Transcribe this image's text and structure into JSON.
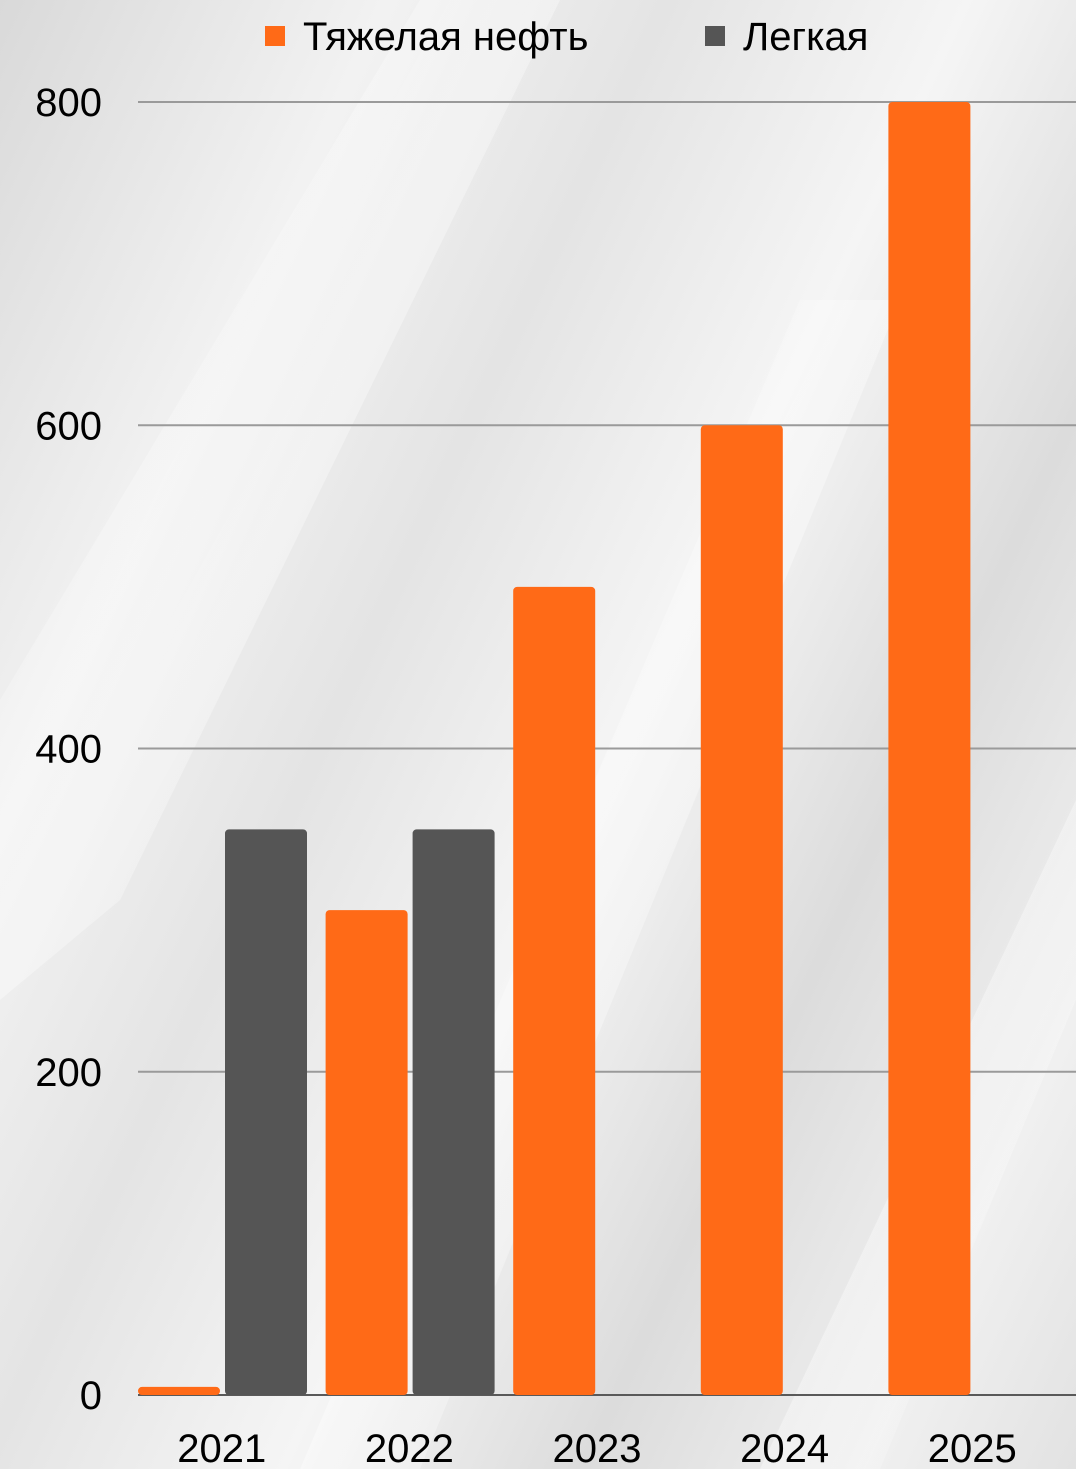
{
  "chart_data": {
    "type": "bar",
    "title": "",
    "xlabel": "",
    "ylabel": "",
    "categories": [
      "2021",
      "2022",
      "2023",
      "2024",
      "2025"
    ],
    "series": [
      {
        "name": "Тяжелая нефть",
        "color": "#ff6a17",
        "values": [
          5,
          300,
          500,
          600,
          800
        ]
      },
      {
        "name": "Легкая",
        "color": "#555555",
        "values": [
          350,
          350,
          0,
          0,
          0
        ]
      }
    ],
    "ylim": [
      0,
      800
    ],
    "yticks": [
      "0",
      "200",
      "400",
      "600",
      "800"
    ],
    "grid": true,
    "legend_position": "top"
  }
}
